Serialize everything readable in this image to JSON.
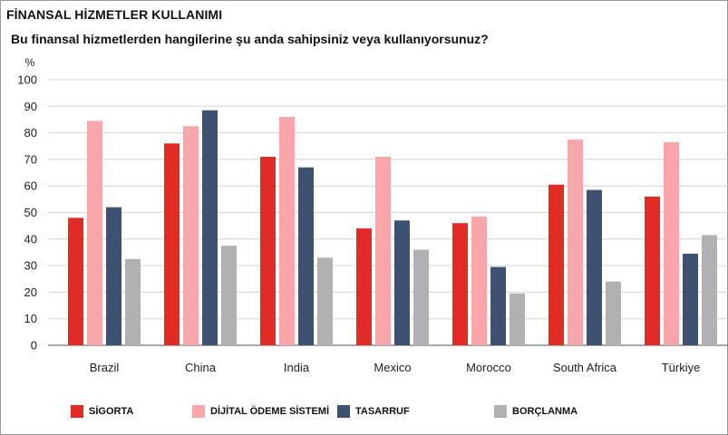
{
  "header": {
    "title": "FİNANSAL HİZMETLER KULLANIMI",
    "subtitle": "Bu finansal hizmetlerden hangilerine şu anda sahipsiniz veya kullanıyorsunuz?"
  },
  "chart_data": {
    "type": "bar",
    "ylabel": "%",
    "ylim": [
      0,
      100
    ],
    "yticks": [
      0,
      10,
      20,
      30,
      40,
      50,
      60,
      70,
      80,
      90,
      100
    ],
    "grid": true,
    "legend_position": "bottom",
    "categories": [
      "Brazil",
      "China",
      "India",
      "Mexico",
      "Morocco",
      "South Africa",
      "Türkiye"
    ],
    "series": [
      {
        "name": "SİGORTA",
        "color": "#e02b27",
        "values": [
          48,
          76,
          71,
          44,
          46,
          60.5,
          56
        ]
      },
      {
        "name": "DİJİTAL ÖDEME SİSTEMİ",
        "color": "#f7a7aa",
        "values": [
          84.5,
          82.5,
          86,
          71,
          48.5,
          77.5,
          76.5
        ]
      },
      {
        "name": "TASARRUF",
        "color": "#3d5170",
        "values": [
          52,
          88.5,
          67,
          47,
          29.5,
          58.5,
          34.5
        ]
      },
      {
        "name": "BORÇLANMA",
        "color": "#b1b1b4",
        "values": [
          32.5,
          37.5,
          33,
          36,
          19.5,
          24,
          41.5
        ]
      }
    ]
  }
}
